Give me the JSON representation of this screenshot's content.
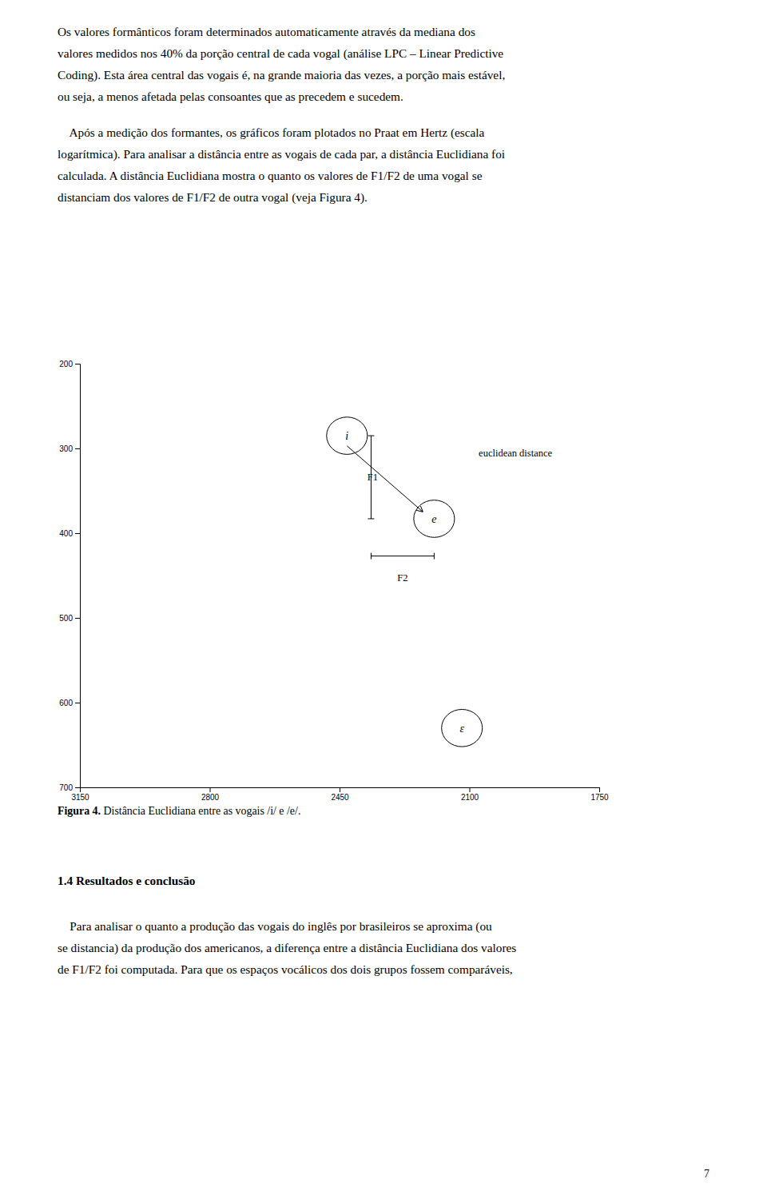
{
  "page": {
    "paragraphs": [
      [
        "Os valores formânticos foram determinados automaticamente através da mediana dos",
        "valores medidos nos 40% da porção central de cada vogal (análise LPC – Linear Predictive",
        "Coding). Esta área central das vogais é, na grande maioria das vezes, a porção mais estável,",
        "ou seja, a menos afetada pelas consoantes que as precedem e sucedem."
      ],
      [
        "    Após a medição dos formantes, os gráficos foram plotados no Praat em Hertz (escala",
        "logarítmica). Para analisar a distância entre as vogais de cada par, a distância Euclidiana foi",
        "calculada. A distância Euclidiana mostra o quanto os valores de F1/F2 de uma vogal se",
        "distanciam dos valores de F1/F2 de outra vogal (veja Figura 4)."
      ]
    ],
    "caption_bold": "Figura 4.",
    "caption": " Distância Euclidiana entre as vogais /i/ e /e/.",
    "heading": "1.4 Resultados e conclusão",
    "section_paragraph": [
      "    Para analisar o quanto a produção das vogais do inglês por brasileiros se aproxima (ou",
      "se distancia) da produção dos americanos, a diferença entre a distância Euclidiana dos valores",
      "de F1/F2 foi computada. Para que os espaços vocálicos dos dois grupos fossem comparáveis,"
    ],
    "page_number": "7"
  },
  "chart_data": {
    "type": "scatter",
    "marker": "ellipse",
    "x": [
      2430,
      2195,
      2120
    ],
    "values": [
      285,
      383,
      630
    ],
    "labels": [
      "i",
      "e",
      "ε"
    ],
    "x_radius": [
      55,
      55,
      55
    ],
    "y_radius": [
      22,
      22,
      22
    ],
    "xlim": [
      3150,
      1750
    ],
    "ylim": [
      700,
      200
    ],
    "xticks": [
      3150,
      2800,
      2450,
      2100,
      1750
    ],
    "yticks": [
      200,
      300,
      400,
      500,
      600,
      700
    ],
    "grid": false,
    "annotations": [
      {
        "type": "bracket",
        "x": [
          2365,
          2365
        ],
        "y": [
          285,
          383
        ],
        "text": "F1",
        "text_x": 2375,
        "text_y": 334
      },
      {
        "type": "bracket",
        "x": [
          2365,
          2195
        ],
        "y": [
          427,
          427
        ],
        "text": "F2",
        "text_x": 2280,
        "text_y": 447
      },
      {
        "type": "arrow",
        "x": [
          2430,
          2225
        ],
        "y": [
          297,
          375
        ],
        "text": "euclidean distance",
        "text_x": 2075,
        "text_y": 305
      }
    ]
  }
}
